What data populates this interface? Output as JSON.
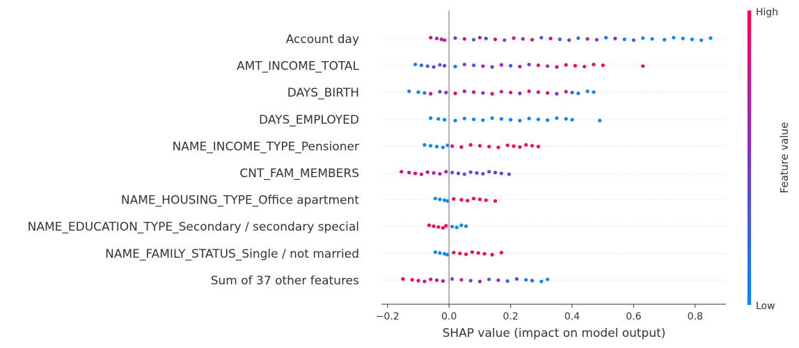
{
  "chart_data": {
    "type": "scatter",
    "subtype": "shap-beeswarm",
    "title": "",
    "xlabel": "SHAP value (impact on model output)",
    "ylabel": "",
    "xlim": [
      -0.22,
      0.9
    ],
    "xticks": [
      -0.2,
      0.0,
      0.2,
      0.4,
      0.6,
      0.8
    ],
    "xtick_labels": [
      "−0.2",
      "0.0",
      "0.2",
      "0.4",
      "0.6",
      "0.8"
    ],
    "grid": false,
    "legend": {
      "type": "colorbar",
      "placement": "right",
      "title": "Feature value",
      "high_label": "High",
      "low_label": "Low",
      "high_color": "#ff0052",
      "mid_color": "#7b35d1",
      "low_color": "#008bfb"
    },
    "features": [
      {
        "name": "Account day",
        "points": [
          {
            "x": -0.06,
            "v": 0.9
          },
          {
            "x": -0.04,
            "v": 0.6
          },
          {
            "x": -0.025,
            "v": 0.8
          },
          {
            "x": -0.015,
            "v": 0.7
          },
          {
            "x": 0.02,
            "v": 0.5
          },
          {
            "x": 0.05,
            "v": 0.8
          },
          {
            "x": 0.08,
            "v": 0.2
          },
          {
            "x": 0.1,
            "v": 0.7
          },
          {
            "x": 0.12,
            "v": 0.4
          },
          {
            "x": 0.15,
            "v": 0.9
          },
          {
            "x": 0.18,
            "v": 0.3
          },
          {
            "x": 0.21,
            "v": 0.8
          },
          {
            "x": 0.24,
            "v": 0.5
          },
          {
            "x": 0.27,
            "v": 0.85
          },
          {
            "x": 0.3,
            "v": 0.4
          },
          {
            "x": 0.33,
            "v": 0.9
          },
          {
            "x": 0.36,
            "v": 0.3
          },
          {
            "x": 0.39,
            "v": 0.6
          },
          {
            "x": 0.42,
            "v": 0.2
          },
          {
            "x": 0.45,
            "v": 0.7
          },
          {
            "x": 0.48,
            "v": 0.4
          },
          {
            "x": 0.51,
            "v": 0.15
          },
          {
            "x": 0.54,
            "v": 0.6
          },
          {
            "x": 0.57,
            "v": 0.1
          },
          {
            "x": 0.6,
            "v": 0.3
          },
          {
            "x": 0.63,
            "v": 0.05
          },
          {
            "x": 0.66,
            "v": 0.1
          },
          {
            "x": 0.7,
            "v": 0.05
          },
          {
            "x": 0.73,
            "v": 0.0
          },
          {
            "x": 0.76,
            "v": 0.05
          },
          {
            "x": 0.79,
            "v": 0.0
          },
          {
            "x": 0.82,
            "v": 0.0
          },
          {
            "x": 0.85,
            "v": 0.0
          }
        ]
      },
      {
        "name": "AMT_INCOME_TOTAL",
        "points": [
          {
            "x": -0.11,
            "v": 0.1
          },
          {
            "x": -0.09,
            "v": 0.2
          },
          {
            "x": -0.07,
            "v": 0.3
          },
          {
            "x": -0.05,
            "v": 0.4
          },
          {
            "x": -0.03,
            "v": 0.3
          },
          {
            "x": -0.015,
            "v": 0.5
          },
          {
            "x": 0.02,
            "v": 0.2
          },
          {
            "x": 0.05,
            "v": 0.5
          },
          {
            "x": 0.08,
            "v": 0.3
          },
          {
            "x": 0.11,
            "v": 0.6
          },
          {
            "x": 0.14,
            "v": 0.4
          },
          {
            "x": 0.17,
            "v": 0.7
          },
          {
            "x": 0.2,
            "v": 0.3
          },
          {
            "x": 0.23,
            "v": 0.75
          },
          {
            "x": 0.26,
            "v": 0.5
          },
          {
            "x": 0.29,
            "v": 0.8
          },
          {
            "x": 0.32,
            "v": 0.6
          },
          {
            "x": 0.35,
            "v": 0.85
          },
          {
            "x": 0.38,
            "v": 0.9
          },
          {
            "x": 0.41,
            "v": 0.9
          },
          {
            "x": 0.44,
            "v": 0.95
          },
          {
            "x": 0.47,
            "v": 0.95
          },
          {
            "x": 0.5,
            "v": 1.0
          },
          {
            "x": 0.63,
            "v": 1.0
          }
        ]
      },
      {
        "name": "DAYS_BIRTH",
        "points": [
          {
            "x": -0.13,
            "v": 0.1
          },
          {
            "x": -0.1,
            "v": 0.0
          },
          {
            "x": -0.08,
            "v": 0.2
          },
          {
            "x": -0.06,
            "v": 0.7
          },
          {
            "x": -0.03,
            "v": 0.4
          },
          {
            "x": -0.01,
            "v": 0.6
          },
          {
            "x": 0.02,
            "v": 0.9
          },
          {
            "x": 0.05,
            "v": 0.6
          },
          {
            "x": 0.08,
            "v": 0.85
          },
          {
            "x": 0.11,
            "v": 0.5
          },
          {
            "x": 0.14,
            "v": 0.9
          },
          {
            "x": 0.17,
            "v": 0.6
          },
          {
            "x": 0.2,
            "v": 0.85
          },
          {
            "x": 0.23,
            "v": 0.5
          },
          {
            "x": 0.26,
            "v": 0.9
          },
          {
            "x": 0.29,
            "v": 0.7
          },
          {
            "x": 0.32,
            "v": 0.9
          },
          {
            "x": 0.35,
            "v": 0.5
          },
          {
            "x": 0.38,
            "v": 0.9
          },
          {
            "x": 0.4,
            "v": 0.3
          },
          {
            "x": 0.42,
            "v": 0.1
          },
          {
            "x": 0.45,
            "v": 0.0
          },
          {
            "x": 0.47,
            "v": 0.0
          }
        ]
      },
      {
        "name": "DAYS_EMPLOYED",
        "points": [
          {
            "x": -0.06,
            "v": 0.0
          },
          {
            "x": -0.035,
            "v": 0.0
          },
          {
            "x": -0.015,
            "v": 0.05
          },
          {
            "x": 0.02,
            "v": 0.0
          },
          {
            "x": 0.05,
            "v": 0.0
          },
          {
            "x": 0.08,
            "v": 0.05
          },
          {
            "x": 0.11,
            "v": 0.0
          },
          {
            "x": 0.14,
            "v": 0.0
          },
          {
            "x": 0.17,
            "v": 0.05
          },
          {
            "x": 0.2,
            "v": 0.0
          },
          {
            "x": 0.23,
            "v": 0.0
          },
          {
            "x": 0.26,
            "v": 0.0
          },
          {
            "x": 0.29,
            "v": 0.05
          },
          {
            "x": 0.32,
            "v": 0.0
          },
          {
            "x": 0.35,
            "v": 0.0
          },
          {
            "x": 0.38,
            "v": 0.0
          },
          {
            "x": 0.4,
            "v": 0.0
          },
          {
            "x": 0.49,
            "v": 0.0
          }
        ]
      },
      {
        "name": "NAME_INCOME_TYPE_Pensioner",
        "points": [
          {
            "x": -0.08,
            "v": 0.0
          },
          {
            "x": -0.06,
            "v": 0.0
          },
          {
            "x": -0.04,
            "v": 0.0
          },
          {
            "x": -0.02,
            "v": 0.0
          },
          {
            "x": -0.005,
            "v": 0.0
          },
          {
            "x": 0.01,
            "v": 1.0
          },
          {
            "x": 0.04,
            "v": 1.0
          },
          {
            "x": 0.07,
            "v": 1.0
          },
          {
            "x": 0.1,
            "v": 1.0
          },
          {
            "x": 0.13,
            "v": 1.0
          },
          {
            "x": 0.16,
            "v": 1.0
          },
          {
            "x": 0.19,
            "v": 1.0
          },
          {
            "x": 0.21,
            "v": 1.0
          },
          {
            "x": 0.23,
            "v": 1.0
          },
          {
            "x": 0.25,
            "v": 1.0
          },
          {
            "x": 0.27,
            "v": 1.0
          },
          {
            "x": 0.29,
            "v": 1.0
          }
        ]
      },
      {
        "name": "CNT_FAM_MEMBERS",
        "points": [
          {
            "x": -0.155,
            "v": 0.9
          },
          {
            "x": -0.13,
            "v": 0.8
          },
          {
            "x": -0.11,
            "v": 0.9
          },
          {
            "x": -0.09,
            "v": 0.75
          },
          {
            "x": -0.07,
            "v": 0.85
          },
          {
            "x": -0.05,
            "v": 0.7
          },
          {
            "x": -0.03,
            "v": 0.8
          },
          {
            "x": -0.01,
            "v": 0.6
          },
          {
            "x": 0.01,
            "v": 0.3
          },
          {
            "x": 0.03,
            "v": 0.4
          },
          {
            "x": 0.05,
            "v": 0.3
          },
          {
            "x": 0.07,
            "v": 0.5
          },
          {
            "x": 0.09,
            "v": 0.4
          },
          {
            "x": 0.11,
            "v": 0.45
          },
          {
            "x": 0.13,
            "v": 0.35
          },
          {
            "x": 0.15,
            "v": 0.5
          },
          {
            "x": 0.17,
            "v": 0.4
          },
          {
            "x": 0.195,
            "v": 0.35
          }
        ]
      },
      {
        "name": "NAME_HOUSING_TYPE_Office apartment",
        "points": [
          {
            "x": -0.045,
            "v": 0.0
          },
          {
            "x": -0.03,
            "v": 0.0
          },
          {
            "x": -0.015,
            "v": 0.0
          },
          {
            "x": -0.005,
            "v": 0.0
          },
          {
            "x": 0.015,
            "v": 1.0
          },
          {
            "x": 0.04,
            "v": 1.0
          },
          {
            "x": 0.06,
            "v": 1.0
          },
          {
            "x": 0.08,
            "v": 1.0
          },
          {
            "x": 0.1,
            "v": 1.0
          },
          {
            "x": 0.12,
            "v": 1.0
          },
          {
            "x": 0.15,
            "v": 1.0
          }
        ]
      },
      {
        "name": "NAME_EDUCATION_TYPE_Secondary / secondary special",
        "points": [
          {
            "x": -0.065,
            "v": 1.0
          },
          {
            "x": -0.05,
            "v": 1.0
          },
          {
            "x": -0.035,
            "v": 1.0
          },
          {
            "x": -0.02,
            "v": 1.0
          },
          {
            "x": -0.01,
            "v": 1.0
          },
          {
            "x": 0.01,
            "v": 0.0
          },
          {
            "x": 0.025,
            "v": 0.0
          },
          {
            "x": 0.04,
            "v": 0.0
          },
          {
            "x": 0.055,
            "v": 0.0
          }
        ]
      },
      {
        "name": "NAME_FAMILY_STATUS_Single / not married",
        "points": [
          {
            "x": -0.045,
            "v": 0.0
          },
          {
            "x": -0.03,
            "v": 0.0
          },
          {
            "x": -0.015,
            "v": 0.0
          },
          {
            "x": -0.005,
            "v": 0.0
          },
          {
            "x": 0.015,
            "v": 1.0
          },
          {
            "x": 0.035,
            "v": 1.0
          },
          {
            "x": 0.055,
            "v": 1.0
          },
          {
            "x": 0.075,
            "v": 1.0
          },
          {
            "x": 0.095,
            "v": 1.0
          },
          {
            "x": 0.115,
            "v": 1.0
          },
          {
            "x": 0.14,
            "v": 1.0
          },
          {
            "x": 0.17,
            "v": 1.0
          }
        ]
      },
      {
        "name": "Sum of 37 other features",
        "points": [
          {
            "x": -0.15,
            "v": 1.0
          },
          {
            "x": -0.12,
            "v": 0.9
          },
          {
            "x": -0.1,
            "v": 1.0
          },
          {
            "x": -0.08,
            "v": 0.7
          },
          {
            "x": -0.06,
            "v": 0.9
          },
          {
            "x": -0.04,
            "v": 0.6
          },
          {
            "x": -0.02,
            "v": 0.8
          },
          {
            "x": 0.01,
            "v": 0.3
          },
          {
            "x": 0.04,
            "v": 0.7
          },
          {
            "x": 0.07,
            "v": 0.4
          },
          {
            "x": 0.1,
            "v": 0.8
          },
          {
            "x": 0.13,
            "v": 0.3
          },
          {
            "x": 0.16,
            "v": 0.5
          },
          {
            "x": 0.19,
            "v": 0.2
          },
          {
            "x": 0.22,
            "v": 0.4
          },
          {
            "x": 0.25,
            "v": 0.1
          },
          {
            "x": 0.27,
            "v": 0.3
          },
          {
            "x": 0.3,
            "v": 0.0
          },
          {
            "x": 0.32,
            "v": 0.0
          }
        ]
      }
    ]
  }
}
